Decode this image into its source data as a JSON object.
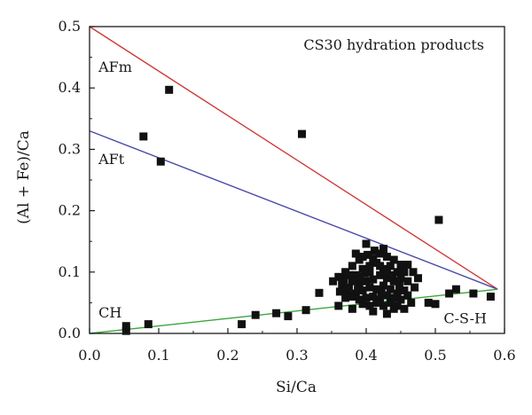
{
  "chart_data": {
    "type": "scatter",
    "title": "CS30 hydration products",
    "xlabel": "Si/Ca",
    "ylabel": "(Al + Fe)/Ca",
    "xlim": [
      0.0,
      0.6
    ],
    "ylim": [
      0.0,
      0.5
    ],
    "x_ticks": [
      "0.0",
      "0.1",
      "0.2",
      "0.3",
      "0.4",
      "0.5",
      "0.6"
    ],
    "y_ticks": [
      "0.0",
      "0.1",
      "0.2",
      "0.3",
      "0.4",
      "0.5"
    ],
    "grid": false,
    "annotations": [
      {
        "text": "AFm",
        "x": 0.013,
        "y": 0.435
      },
      {
        "text": "AFt",
        "x": 0.013,
        "y": 0.285
      },
      {
        "text": "CH",
        "x": 0.013,
        "y": 0.035
      },
      {
        "text": "C-S-H",
        "x": 0.512,
        "y": 0.025
      }
    ],
    "lines": [
      {
        "x": [
          0.0,
          0.59
        ],
        "y": [
          0.5,
          0.072
        ],
        "color": "#cf3a3a"
      },
      {
        "x": [
          0.0,
          0.59
        ],
        "y": [
          0.33,
          0.072
        ],
        "color": "#4a4aa8"
      },
      {
        "x": [
          0.0,
          0.59
        ],
        "y": [
          0.0,
          0.072
        ],
        "color": "#3aa63a"
      }
    ],
    "marker_color": "#111111",
    "points": [
      [
        0.115,
        0.397
      ],
      [
        0.078,
        0.321
      ],
      [
        0.103,
        0.28
      ],
      [
        0.307,
        0.325
      ],
      [
        0.505,
        0.185
      ],
      [
        0.053,
        0.012
      ],
      [
        0.053,
        0.004
      ],
      [
        0.085,
        0.015
      ],
      [
        0.22,
        0.015
      ],
      [
        0.24,
        0.03
      ],
      [
        0.27,
        0.033
      ],
      [
        0.287,
        0.028
      ],
      [
        0.313,
        0.038
      ],
      [
        0.332,
        0.066
      ],
      [
        0.36,
        0.045
      ],
      [
        0.49,
        0.05
      ],
      [
        0.52,
        0.065
      ],
      [
        0.53,
        0.072
      ],
      [
        0.555,
        0.065
      ],
      [
        0.58,
        0.06
      ],
      [
        0.5,
        0.048
      ],
      [
        0.465,
        0.05
      ],
      [
        0.44,
        0.04
      ],
      [
        0.43,
        0.032
      ],
      [
        0.41,
        0.036
      ],
      [
        0.38,
        0.04
      ],
      [
        0.46,
        0.085
      ],
      [
        0.47,
        0.075
      ],
      [
        0.475,
        0.09
      ],
      [
        0.455,
        0.1
      ],
      [
        0.45,
        0.112
      ],
      [
        0.46,
        0.112
      ],
      [
        0.44,
        0.12
      ],
      [
        0.42,
        0.13
      ],
      [
        0.4,
        0.146
      ],
      [
        0.425,
        0.138
      ],
      [
        0.43,
        0.125
      ],
      [
        0.41,
        0.122
      ],
      [
        0.39,
        0.12
      ],
      [
        0.38,
        0.11
      ],
      [
        0.37,
        0.1
      ],
      [
        0.36,
        0.092
      ],
      [
        0.365,
        0.08
      ],
      [
        0.372,
        0.07
      ],
      [
        0.362,
        0.068
      ],
      [
        0.385,
        0.095
      ],
      [
        0.395,
        0.105
      ],
      [
        0.405,
        0.11
      ],
      [
        0.415,
        0.115
      ],
      [
        0.425,
        0.105
      ],
      [
        0.435,
        0.11
      ],
      [
        0.445,
        0.1
      ],
      [
        0.45,
        0.09
      ],
      [
        0.44,
        0.085
      ],
      [
        0.43,
        0.09
      ],
      [
        0.42,
        0.095
      ],
      [
        0.41,
        0.088
      ],
      [
        0.4,
        0.085
      ],
      [
        0.39,
        0.08
      ],
      [
        0.38,
        0.085
      ],
      [
        0.375,
        0.075
      ],
      [
        0.385,
        0.065
      ],
      [
        0.395,
        0.07
      ],
      [
        0.405,
        0.075
      ],
      [
        0.415,
        0.072
      ],
      [
        0.425,
        0.078
      ],
      [
        0.435,
        0.072
      ],
      [
        0.445,
        0.065
      ],
      [
        0.455,
        0.07
      ],
      [
        0.46,
        0.062
      ],
      [
        0.45,
        0.055
      ],
      [
        0.44,
        0.058
      ],
      [
        0.43,
        0.062
      ],
      [
        0.42,
        0.055
      ],
      [
        0.41,
        0.06
      ],
      [
        0.4,
        0.058
      ],
      [
        0.39,
        0.055
      ],
      [
        0.38,
        0.06
      ],
      [
        0.37,
        0.058
      ],
      [
        0.395,
        0.048
      ],
      [
        0.405,
        0.045
      ],
      [
        0.415,
        0.05
      ],
      [
        0.425,
        0.045
      ],
      [
        0.435,
        0.05
      ],
      [
        0.445,
        0.045
      ],
      [
        0.455,
        0.04
      ],
      [
        0.385,
        0.13
      ],
      [
        0.395,
        0.125
      ],
      [
        0.42,
        0.11
      ],
      [
        0.405,
        0.1
      ],
      [
        0.39,
        0.092
      ],
      [
        0.375,
        0.095
      ],
      [
        0.43,
        0.1
      ],
      [
        0.448,
        0.078
      ],
      [
        0.468,
        0.1
      ],
      [
        0.412,
        0.135
      ],
      [
        0.398,
        0.098
      ],
      [
        0.378,
        0.062
      ],
      [
        0.368,
        0.088
      ],
      [
        0.438,
        0.095
      ],
      [
        0.422,
        0.065
      ],
      [
        0.352,
        0.085
      ],
      [
        0.402,
        0.128
      ],
      [
        0.388,
        0.072
      ]
    ]
  }
}
